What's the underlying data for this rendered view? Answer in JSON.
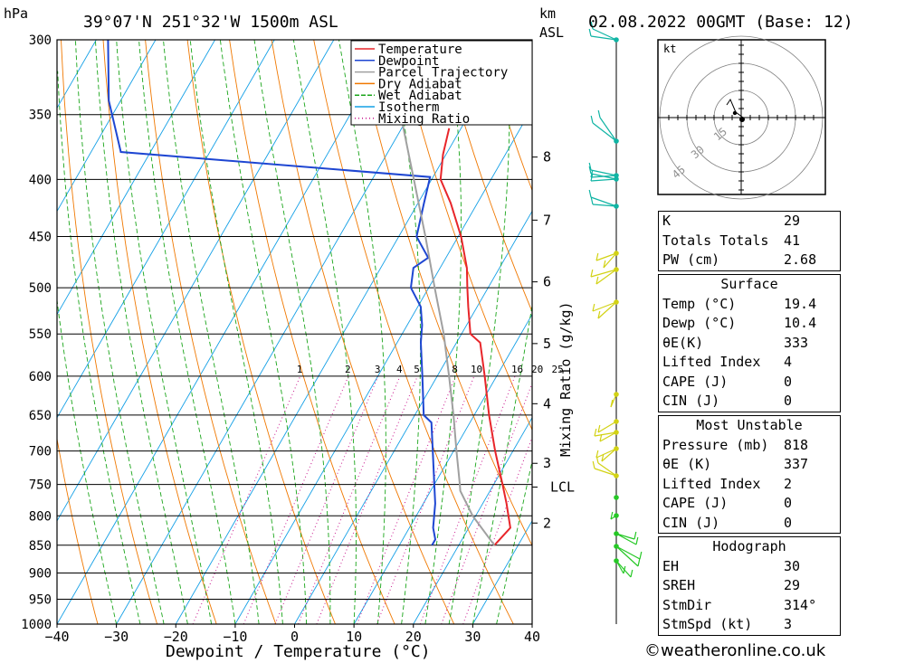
{
  "header": {
    "pressure_unit": "hPa",
    "location": "39°07'N  251°32'W  1500m  ASL",
    "km_label": "km",
    "asl_label": "ASL",
    "datetime": "02.08.2022  00GMT  (Base: 12)"
  },
  "chart_data": {
    "type": "line",
    "title": "39°07'N  251°32'W  1500m  ASL",
    "xlabel": "Dewpoint / Temperature (°C)",
    "ylabel": "hPa",
    "ylabel_right": "Mixing Ratio (g/kg)",
    "xlim": [
      -40,
      40
    ],
    "ylim": [
      1000,
      300
    ],
    "y_log_scale": true,
    "skew": true,
    "pressure_ticks": [
      300,
      350,
      400,
      450,
      500,
      550,
      600,
      650,
      700,
      750,
      800,
      850,
      900,
      950,
      1000
    ],
    "temperature_ticks": [
      -40,
      -30,
      -20,
      -10,
      0,
      10,
      20,
      30,
      40
    ],
    "height_ticks": [
      {
        "label": "8",
        "p": 382
      },
      {
        "label": "7",
        "p": 435
      },
      {
        "label": "6",
        "p": 494
      },
      {
        "label": "5",
        "p": 561
      },
      {
        "label": "4",
        "p": 635
      },
      {
        "label": "3",
        "p": 718
      },
      {
        "label": "LCL",
        "p": 754
      },
      {
        "label": "2",
        "p": 812
      }
    ],
    "mixing_ratio_labels": [
      "1",
      "2",
      "3",
      "4",
      "5",
      "8",
      "10",
      "16",
      "20",
      "25"
    ],
    "mixing_ratios": [
      1,
      2,
      3,
      4,
      5,
      8,
      10,
      16,
      20,
      25
    ],
    "legend": [
      "Temperature",
      "Dewpoint",
      "Parcel Trajectory",
      "Dry Adiabat",
      "Wet Adiabat",
      "Isotherm",
      "Mixing Ratio"
    ],
    "legend_position": "top-right",
    "series": [
      {
        "name": "Temperature",
        "color": "#e8252a",
        "points": [
          [
            850,
            26.0
          ],
          [
            820,
            27.0
          ],
          [
            780,
            24.0
          ],
          [
            750,
            21.5
          ],
          [
            700,
            17.0
          ],
          [
            650,
            12.5
          ],
          [
            600,
            8.0
          ],
          [
            560,
            4.0
          ],
          [
            550,
            1.5
          ],
          [
            520,
            -1.5
          ],
          [
            500,
            -3.5
          ],
          [
            480,
            -5.5
          ],
          [
            450,
            -9.5
          ],
          [
            420,
            -14.5
          ],
          [
            400,
            -18.5
          ],
          [
            380,
            -20.5
          ],
          [
            360,
            -22.0
          ]
        ]
      },
      {
        "name": "Dewpoint",
        "color": "#1e46d2",
        "points": [
          [
            850,
            15.5
          ],
          [
            840,
            15.5
          ],
          [
            820,
            14.0
          ],
          [
            780,
            12.0
          ],
          [
            750,
            10.0
          ],
          [
            700,
            6.5
          ],
          [
            660,
            3.5
          ],
          [
            650,
            1.5
          ],
          [
            600,
            -2.5
          ],
          [
            560,
            -6.0
          ],
          [
            540,
            -7.5
          ],
          [
            520,
            -9.5
          ],
          [
            500,
            -13.0
          ],
          [
            480,
            -14.5
          ],
          [
            470,
            -13.0
          ],
          [
            450,
            -17.0
          ],
          [
            420,
            -19.0
          ],
          [
            405,
            -20.0
          ],
          [
            398,
            -20.5
          ],
          [
            378,
            -75.0
          ],
          [
            340,
            -82.0
          ],
          [
            300,
            -88.0
          ]
        ]
      },
      {
        "name": "Parcel Trajectory",
        "color": "#a0a0a0",
        "points": [
          [
            850,
            26.0
          ],
          [
            800,
            19.5
          ],
          [
            760,
            15.0
          ],
          [
            750,
            14.3
          ],
          [
            700,
            10.5
          ],
          [
            650,
            6.5
          ],
          [
            600,
            2.0
          ],
          [
            550,
            -3.0
          ],
          [
            500,
            -9.0
          ],
          [
            450,
            -15.5
          ],
          [
            400,
            -23.0
          ],
          [
            350,
            -31.5
          ],
          [
            300,
            -41.0
          ]
        ]
      }
    ],
    "hodograph": {
      "unit_label": "kt",
      "rings": [
        "15",
        "30",
        "45"
      ]
    }
  },
  "stats": {
    "block1": [
      {
        "label": "K",
        "value": "29"
      },
      {
        "label": "Totals Totals",
        "value": "41"
      },
      {
        "label": "PW (cm)",
        "value": "2.68"
      }
    ],
    "surface_title": "Surface",
    "surface": [
      {
        "label": "Temp (°C)",
        "value": "19.4"
      },
      {
        "label": "Dewp (°C)",
        "value": "10.4"
      },
      {
        "label": "θE(K)",
        "value": "333"
      },
      {
        "label": "Lifted Index",
        "value": "4"
      },
      {
        "label": "CAPE (J)",
        "value": "0"
      },
      {
        "label": "CIN (J)",
        "value": "0"
      }
    ],
    "mu_title": "Most Unstable",
    "most_unstable": [
      {
        "label": "Pressure (mb)",
        "value": "818"
      },
      {
        "label": "θE (K)",
        "value": "337"
      },
      {
        "label": "Lifted Index",
        "value": "2"
      },
      {
        "label": "CAPE (J)",
        "value": "0"
      },
      {
        "label": "CIN (J)",
        "value": "0"
      }
    ],
    "hodo_title": "Hodograph",
    "hodograph": [
      {
        "label": "EH",
        "value": "30"
      },
      {
        "label": "SREH",
        "value": "29"
      },
      {
        "label": "StmDir",
        "value": "314°"
      },
      {
        "label": "StmSpd (kt)",
        "value": "3"
      }
    ]
  },
  "footer": {
    "credit": "©weatheronline.co.uk"
  },
  "colors": {
    "temperature": "#e8252a",
    "dewpoint": "#1e46d2",
    "parcel": "#a0a0a0",
    "dry_adiabat": "#f07800",
    "wet_adiabat": "#1aa51a",
    "isotherm": "#14a0e6",
    "mixing_ratio": "#c8148c",
    "wind_upper": "#10b4a4",
    "wind_mid": "#d2d214",
    "wind_low": "#26c826"
  }
}
